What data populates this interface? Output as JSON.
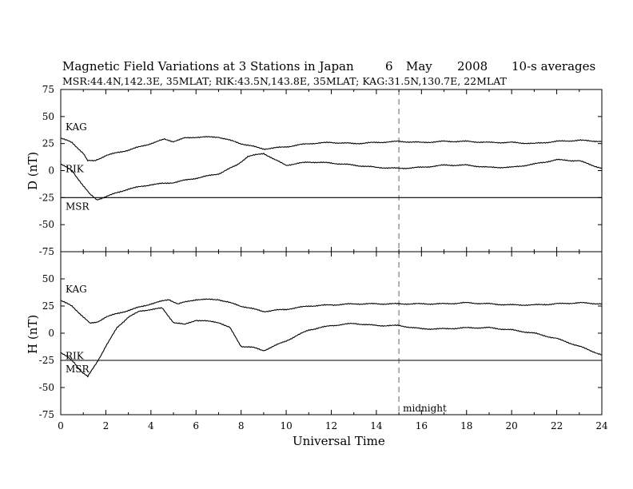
{
  "header": {
    "title": "Magnetic Field Variations at 3 Stations in Japan",
    "day": "6",
    "month": "May",
    "year": "2008",
    "cadence": "10-s averages",
    "stations_line": "MSR:44.4N,142.3E, 35MLAT;  RIK:43.5N,143.8E, 35MLAT;  KAG:31.5N,130.7E, 22MLAT"
  },
  "annotation": {
    "midnight": "midnight",
    "midnight_ut": 15
  },
  "chart_data": [
    {
      "type": "line",
      "panel": "top",
      "ylabel": "D (nT)",
      "xlabel": "",
      "xlim": [
        0,
        24
      ],
      "ylim": [
        -75,
        75
      ],
      "x_ticks": [
        0,
        2,
        4,
        6,
        8,
        10,
        12,
        14,
        16,
        18,
        20,
        22,
        24
      ],
      "y_ticks": [
        -75,
        -50,
        -25,
        0,
        25,
        50,
        75
      ],
      "series": [
        {
          "name": "KAG",
          "x": [
            0,
            0.5,
            1,
            1.2,
            1.5,
            2,
            3,
            4,
            4.6,
            5,
            5.5,
            6,
            7,
            8,
            9,
            10,
            11,
            12,
            13,
            14,
            15,
            16,
            17,
            18,
            19,
            20,
            21,
            22,
            23,
            24
          ],
          "y": [
            30,
            26,
            16,
            9,
            9,
            14,
            19,
            25,
            29,
            27,
            30,
            31,
            31,
            25,
            20,
            22,
            25,
            26,
            25,
            26,
            27,
            26,
            27,
            27,
            26,
            26,
            25,
            27,
            28,
            27
          ]
        },
        {
          "name": "RIK",
          "x": [
            0,
            0.5,
            1,
            1.3,
            1.6,
            2,
            3,
            4,
            5,
            5.5,
            6,
            7,
            7.8,
            8.3,
            9,
            9.5,
            10,
            11,
            12,
            13,
            14,
            15,
            16,
            17,
            18,
            19,
            20,
            21,
            22,
            23,
            24
          ],
          "y": [
            6,
            0,
            -14,
            -22,
            -27,
            -24,
            -17,
            -13,
            -11,
            -9,
            -7,
            -3,
            5,
            13,
            16,
            10,
            5,
            8,
            7,
            5,
            3,
            2,
            3,
            5,
            5,
            3,
            3,
            6,
            10,
            9,
            2
          ]
        },
        {
          "name": "MSR",
          "x": [
            0,
            24
          ],
          "y": [
            -25,
            -25
          ]
        }
      ]
    },
    {
      "type": "line",
      "panel": "bottom",
      "ylabel": "H (nT)",
      "xlabel": "Universal Time",
      "xlim": [
        0,
        24
      ],
      "ylim": [
        -75,
        75
      ],
      "x_ticks": [
        0,
        2,
        4,
        6,
        8,
        10,
        12,
        14,
        16,
        18,
        20,
        22,
        24
      ],
      "y_ticks": [
        -75,
        -50,
        -25,
        0,
        25,
        50,
        75
      ],
      "series": [
        {
          "name": "KAG",
          "x": [
            0,
            0.5,
            1,
            1.3,
            1.6,
            2,
            3,
            4,
            4.8,
            5.2,
            6,
            7,
            8,
            9,
            10,
            11,
            12,
            13,
            14,
            15,
            16,
            17,
            18,
            19,
            20,
            21,
            22,
            23,
            24
          ],
          "y": [
            30,
            25,
            15,
            9,
            10,
            15,
            21,
            27,
            31,
            27,
            31,
            31,
            25,
            20,
            22,
            25,
            26,
            27,
            27,
            27,
            27,
            27,
            28,
            27,
            26,
            26,
            27,
            28,
            27
          ]
        },
        {
          "name": "RIK",
          "x": [
            0,
            0.3,
            0.6,
            0.9,
            1.2,
            1.6,
            2,
            2.5,
            3,
            3.5,
            4,
            4.5,
            5,
            5.5,
            6,
            7,
            7.5,
            8,
            8.5,
            9,
            10,
            11,
            12,
            13,
            14,
            15,
            16,
            17,
            18,
            19,
            20,
            21,
            22,
            23,
            24
          ],
          "y": [
            -18,
            -22,
            -27,
            -35,
            -40,
            -27,
            -12,
            5,
            15,
            20,
            22,
            23,
            10,
            8,
            12,
            10,
            5,
            -12,
            -13,
            -16,
            -7,
            3,
            7,
            9,
            7,
            7,
            4,
            4,
            5,
            5,
            3,
            0,
            -5,
            -12,
            -20
          ]
        },
        {
          "name": "MSR",
          "x": [
            0,
            24
          ],
          "y": [
            -25,
            -25
          ]
        }
      ]
    }
  ]
}
